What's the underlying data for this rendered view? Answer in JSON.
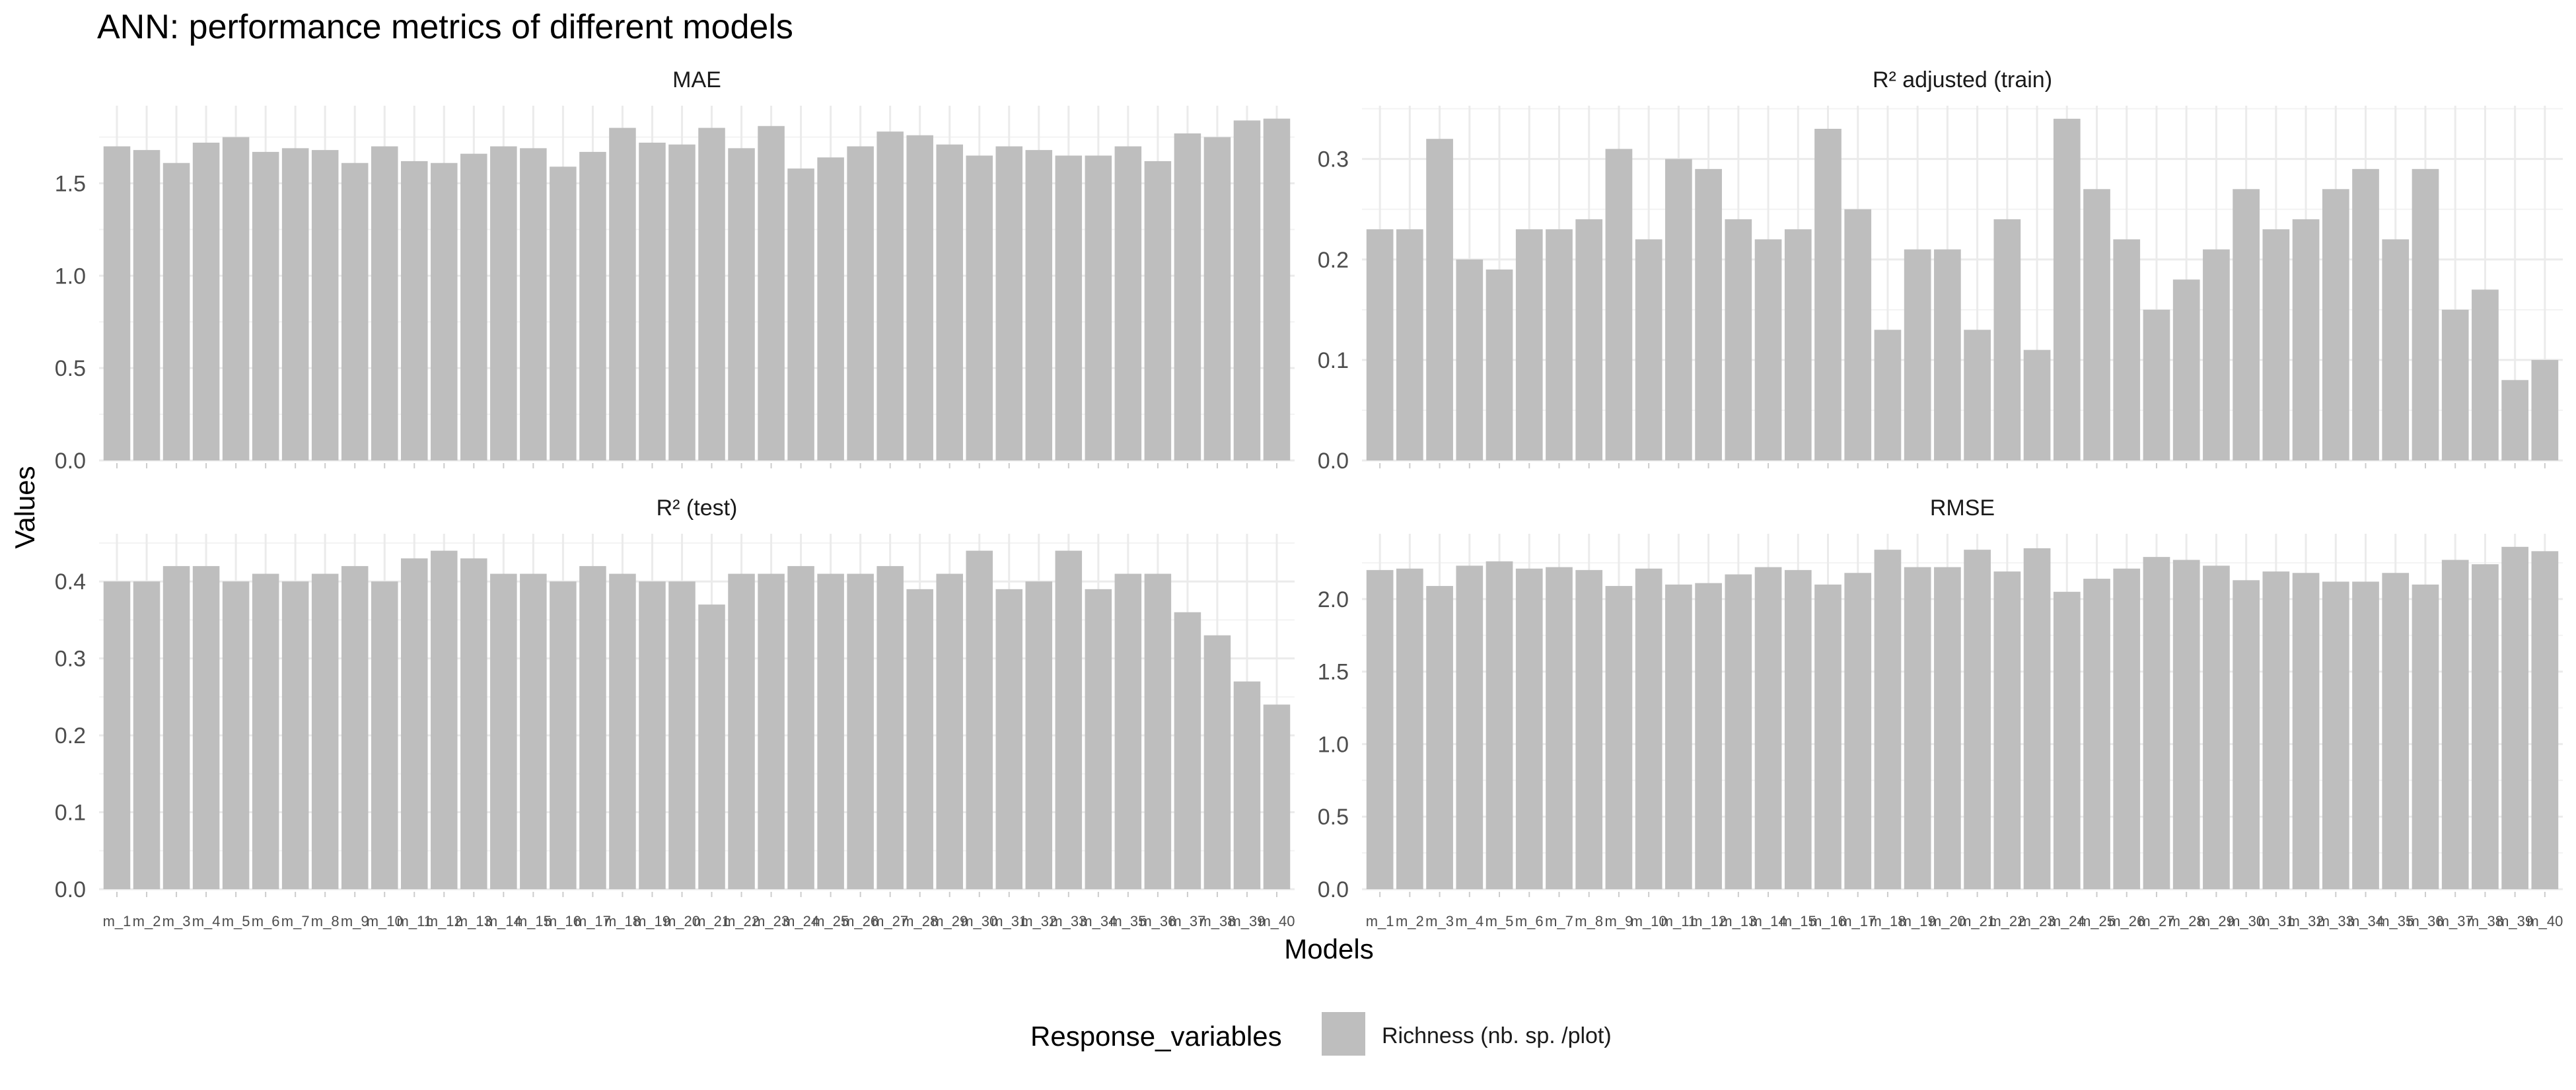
{
  "chart_data": {
    "type": "bar",
    "title": "ANN: performance metrics of different models",
    "xlabel": "Models",
    "ylabel": "Values",
    "grid": true,
    "legend": {
      "title": "Response_variables",
      "placement": "bottom",
      "entries": [
        {
          "name": "Richness (nb. sp. /plot)",
          "color": "#bebebe"
        }
      ]
    },
    "colors": {
      "bar": "#bebebe",
      "grid_major": "#ebebeb",
      "grid_minor": "#f3f3f3",
      "text": "#4d4d4d"
    },
    "categories": [
      "m_1",
      "m_2",
      "m_3",
      "m_4",
      "m_5",
      "m_6",
      "m_7",
      "m_8",
      "m_9",
      "m_10",
      "m_11",
      "m_12",
      "m_13",
      "m_14",
      "m_15",
      "m_16",
      "m_17",
      "m_18",
      "m_19",
      "m_20",
      "m_21",
      "m_22",
      "m_23",
      "m_24",
      "m_25",
      "m_26",
      "m_27",
      "m_28",
      "m_29",
      "m_30",
      "m_31",
      "m_32",
      "m_33",
      "m_34",
      "m_35",
      "m_36",
      "m_37",
      "m_38",
      "m_39",
      "m_40"
    ],
    "panels": [
      {
        "name": "MAE",
        "ylim": [
          0,
          1.92
        ],
        "yticks": [
          0.0,
          0.5,
          1.0,
          1.5
        ],
        "ytick_labels": [
          "0.0",
          "0.5",
          "1.0",
          "1.5"
        ],
        "values": [
          1.7,
          1.68,
          1.61,
          1.72,
          1.75,
          1.67,
          1.69,
          1.68,
          1.61,
          1.7,
          1.62,
          1.61,
          1.66,
          1.7,
          1.69,
          1.59,
          1.67,
          1.8,
          1.72,
          1.71,
          1.8,
          1.69,
          1.81,
          1.58,
          1.64,
          1.7,
          1.78,
          1.76,
          1.71,
          1.65,
          1.7,
          1.68,
          1.65,
          1.65,
          1.7,
          1.62,
          1.77,
          1.75,
          1.84,
          1.85
        ]
      },
      {
        "name": "R² adjusted (train)",
        "ylim": [
          0,
          0.353
        ],
        "yticks": [
          0.0,
          0.1,
          0.2,
          0.3
        ],
        "ytick_labels": [
          "0.0",
          "0.1",
          "0.2",
          "0.3"
        ],
        "values": [
          0.23,
          0.23,
          0.32,
          0.2,
          0.19,
          0.23,
          0.23,
          0.24,
          0.31,
          0.22,
          0.3,
          0.29,
          0.24,
          0.22,
          0.23,
          0.33,
          0.25,
          0.13,
          0.21,
          0.21,
          0.13,
          0.24,
          0.11,
          0.34,
          0.27,
          0.22,
          0.15,
          0.18,
          0.21,
          0.27,
          0.23,
          0.24,
          0.27,
          0.29,
          0.22,
          0.29,
          0.15,
          0.17,
          0.08,
          0.1
        ]
      },
      {
        "name": "R² (test)",
        "ylim": [
          0,
          0.462
        ],
        "yticks": [
          0.0,
          0.1,
          0.2,
          0.3,
          0.4
        ],
        "ytick_labels": [
          "0.0",
          "0.1",
          "0.2",
          "0.3",
          "0.4"
        ],
        "values": [
          0.4,
          0.4,
          0.42,
          0.42,
          0.4,
          0.41,
          0.4,
          0.41,
          0.42,
          0.4,
          0.43,
          0.44,
          0.43,
          0.41,
          0.41,
          0.4,
          0.42,
          0.41,
          0.4,
          0.4,
          0.37,
          0.41,
          0.41,
          0.42,
          0.41,
          0.41,
          0.42,
          0.39,
          0.41,
          0.44,
          0.39,
          0.4,
          0.44,
          0.39,
          0.41,
          0.41,
          0.36,
          0.33,
          0.27,
          0.24
        ]
      },
      {
        "name": "RMSE",
        "ylim": [
          0,
          2.45
        ],
        "yticks": [
          0.0,
          0.5,
          1.0,
          1.5,
          2.0
        ],
        "ytick_labels": [
          "0.0",
          "0.5",
          "1.0",
          "1.5",
          "2.0"
        ],
        "values": [
          2.2,
          2.21,
          2.09,
          2.23,
          2.26,
          2.21,
          2.22,
          2.2,
          2.09,
          2.21,
          2.1,
          2.11,
          2.17,
          2.22,
          2.2,
          2.1,
          2.18,
          2.34,
          2.22,
          2.22,
          2.34,
          2.19,
          2.35,
          2.05,
          2.14,
          2.21,
          2.29,
          2.27,
          2.23,
          2.13,
          2.19,
          2.18,
          2.12,
          2.12,
          2.18,
          2.1,
          2.27,
          2.24,
          2.36,
          2.33
        ]
      }
    ]
  }
}
